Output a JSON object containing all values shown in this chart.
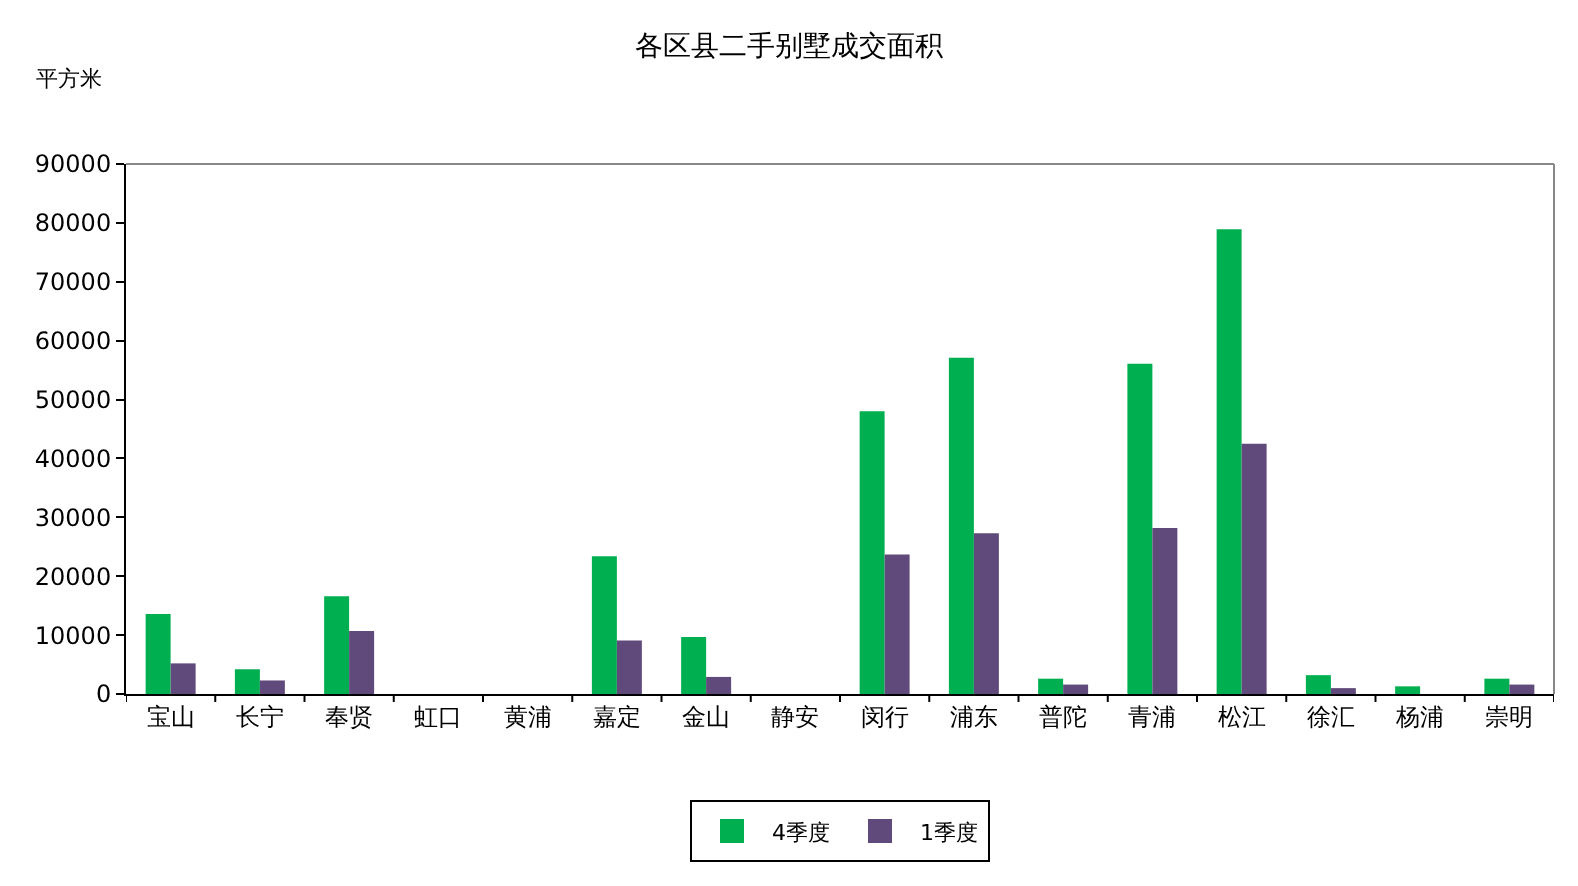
{
  "chart_data": {
    "type": "bar",
    "title": "各区县二手别墅成交面积",
    "ylabel": "平方米",
    "categories": [
      "宝山",
      "长宁",
      "奉贤",
      "虹口",
      "黄浦",
      "嘉定",
      "金山",
      "静安",
      "闵行",
      "浦东",
      "普陀",
      "青浦",
      "松江",
      "徐汇",
      "杨浦",
      "崇明"
    ],
    "series": [
      {
        "name": "4季度",
        "color": "#00b050",
        "values": [
          13600,
          4200,
          16600,
          0,
          0,
          23400,
          9700,
          0,
          48000,
          57100,
          2600,
          56100,
          78900,
          3200,
          1300,
          2600
        ]
      },
      {
        "name": "1季度",
        "color": "#604a7b",
        "values": [
          5200,
          2300,
          10700,
          0,
          0,
          9100,
          2900,
          0,
          23700,
          27300,
          1600,
          28200,
          42500,
          1000,
          0,
          1600
        ]
      }
    ],
    "ylim": [
      0,
      90000
    ],
    "yticks": [
      0,
      10000,
      20000,
      30000,
      40000,
      50000,
      60000,
      70000,
      80000,
      90000
    ],
    "grid": false,
    "legend": "bottom"
  }
}
